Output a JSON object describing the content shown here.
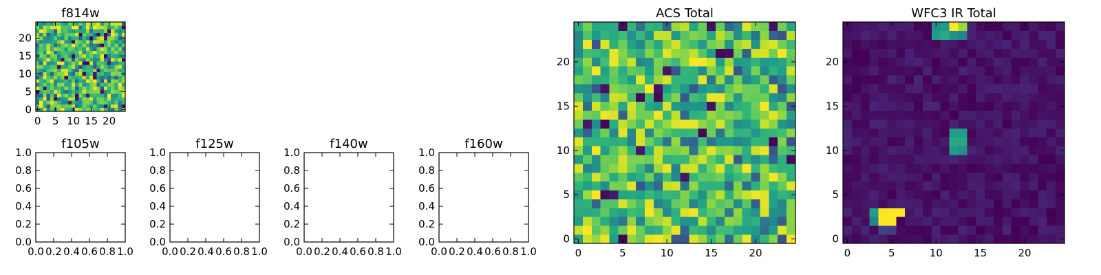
{
  "chart_data": [
    {
      "id": "f814w",
      "type": "heatmap",
      "title": "f814w",
      "colormap": "viridis",
      "grid": false,
      "size": [
        25,
        25
      ],
      "xlim": [
        -0.5,
        24.5
      ],
      "ylim": [
        -0.5,
        24.5
      ],
      "xticks": [
        "0",
        "5",
        "10",
        "15",
        "20"
      ],
      "yticks": [
        "0",
        "5",
        "10",
        "15",
        "20"
      ],
      "pattern": "noise",
      "seed": 814,
      "value_range": [
        0,
        1
      ]
    },
    {
      "id": "f105w",
      "type": "heatmap",
      "title": "f105w",
      "empty": true,
      "xlim": [
        0,
        1
      ],
      "ylim": [
        0,
        1
      ],
      "xticks": [
        "0.0",
        "0.2",
        "0.4",
        "0.6",
        "0.8",
        "1.0"
      ],
      "yticks": [
        "0.0",
        "0.2",
        "0.4",
        "0.6",
        "0.8",
        "1.0"
      ]
    },
    {
      "id": "f125w",
      "type": "heatmap",
      "title": "f125w",
      "empty": true,
      "xlim": [
        0,
        1
      ],
      "ylim": [
        0,
        1
      ],
      "xticks": [
        "0.0",
        "0.2",
        "0.4",
        "0.6",
        "0.8",
        "1.0"
      ],
      "yticks": [
        "0.0",
        "0.2",
        "0.4",
        "0.6",
        "0.8",
        "1.0"
      ]
    },
    {
      "id": "f140w",
      "type": "heatmap",
      "title": "f140w",
      "empty": true,
      "xlim": [
        0,
        1
      ],
      "ylim": [
        0,
        1
      ],
      "xticks": [
        "0.0",
        "0.2",
        "0.4",
        "0.6",
        "0.8",
        "1.0"
      ],
      "yticks": [
        "0.0",
        "0.2",
        "0.4",
        "0.6",
        "0.8",
        "1.0"
      ]
    },
    {
      "id": "f160w",
      "type": "heatmap",
      "title": "f160w",
      "empty": true,
      "xlim": [
        0,
        1
      ],
      "ylim": [
        0,
        1
      ],
      "xticks": [
        "0.0",
        "0.2",
        "0.4",
        "0.6",
        "0.8",
        "1.0"
      ],
      "yticks": [
        "0.0",
        "0.2",
        "0.4",
        "0.6",
        "0.8",
        "1.0"
      ]
    },
    {
      "id": "acs-total",
      "type": "heatmap",
      "title": "ACS Total",
      "colormap": "viridis",
      "grid": false,
      "size": [
        25,
        25
      ],
      "xlim": [
        -0.5,
        24.5
      ],
      "ylim": [
        -0.5,
        24.5
      ],
      "xticks": [
        "0",
        "5",
        "10",
        "15",
        "20"
      ],
      "yticks": [
        "0",
        "5",
        "10",
        "15",
        "20"
      ],
      "pattern": "noise",
      "seed": 2718,
      "value_range": [
        0,
        1
      ]
    },
    {
      "id": "wfc3-ir-total",
      "type": "heatmap",
      "title": "WFC3 IR Total",
      "colormap": "viridis",
      "grid": false,
      "size": [
        25,
        25
      ],
      "xlim": [
        -0.5,
        24.5
      ],
      "ylim": [
        -0.5,
        24.5
      ],
      "xticks": [
        "0",
        "5",
        "10",
        "15",
        "20"
      ],
      "yticks": [
        "0",
        "5",
        "10",
        "15",
        "20"
      ],
      "pattern": "sources",
      "seed": 3141,
      "background_range": [
        0.0,
        0.1
      ],
      "cells": [
        {
          "x": 10,
          "y": 23,
          "v": 0.55
        },
        {
          "x": 10,
          "y": 24,
          "v": 0.5
        },
        {
          "x": 11,
          "y": 23,
          "v": 0.6
        },
        {
          "x": 11,
          "y": 24,
          "v": 0.55
        },
        {
          "x": 12,
          "y": 23,
          "v": 0.5
        },
        {
          "x": 12,
          "y": 24,
          "v": 1.0
        },
        {
          "x": 13,
          "y": 23,
          "v": 0.45
        },
        {
          "x": 13,
          "y": 24,
          "v": 0.85
        },
        {
          "x": 12,
          "y": 10,
          "v": 0.55
        },
        {
          "x": 12,
          "y": 11,
          "v": 0.6
        },
        {
          "x": 12,
          "y": 12,
          "v": 0.55
        },
        {
          "x": 13,
          "y": 10,
          "v": 0.5
        },
        {
          "x": 13,
          "y": 11,
          "v": 0.6
        },
        {
          "x": 13,
          "y": 12,
          "v": 0.55
        },
        {
          "x": 3,
          "y": 2,
          "v": 0.45
        },
        {
          "x": 3,
          "y": 3,
          "v": 0.55
        },
        {
          "x": 4,
          "y": 2,
          "v": 1.0
        },
        {
          "x": 4,
          "y": 3,
          "v": 1.0
        },
        {
          "x": 5,
          "y": 2,
          "v": 1.0
        },
        {
          "x": 5,
          "y": 3,
          "v": 1.0
        },
        {
          "x": 6,
          "y": 3,
          "v": 1.0
        },
        {
          "x": 4,
          "y": 1,
          "v": 0.2
        },
        {
          "x": 5,
          "y": 1,
          "v": 0.18
        }
      ]
    }
  ]
}
